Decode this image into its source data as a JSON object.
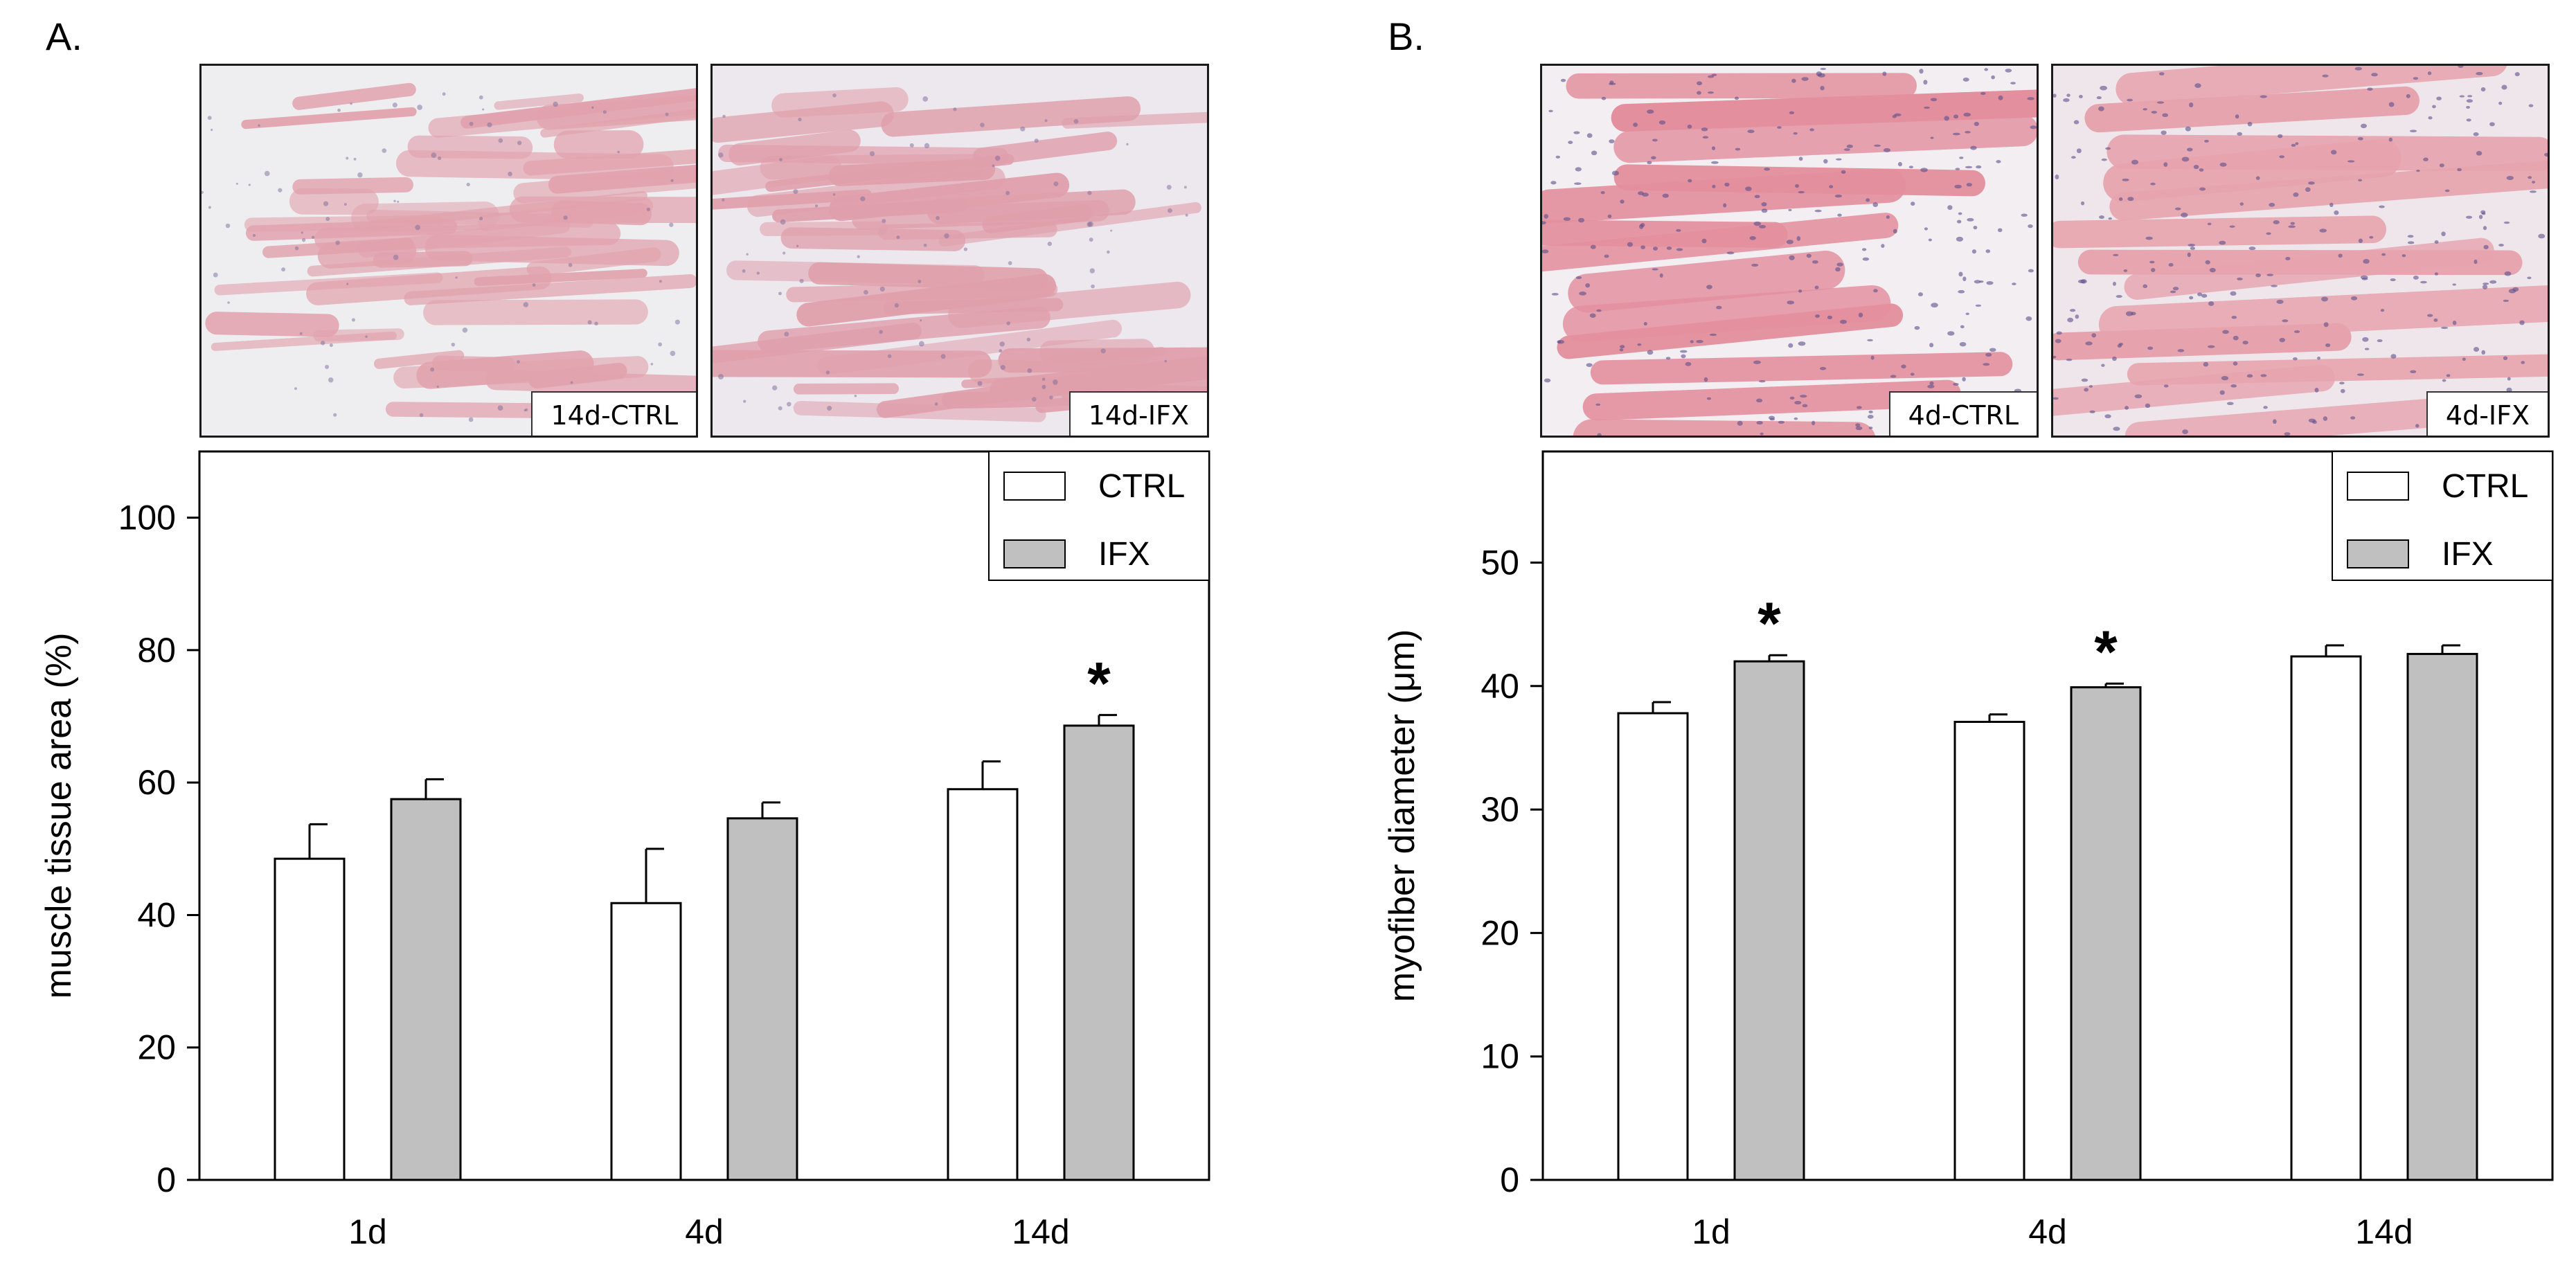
{
  "panels": [
    {
      "letter": "A.",
      "micrographs": [
        {
          "label": "14d-CTRL",
          "tissue_color": "#e1a2ad",
          "background_color": "#eeeef1"
        },
        {
          "label": "14d-IFX",
          "tissue_color": "#df9fab",
          "background_color": "#ede7ee"
        }
      ]
    },
    {
      "letter": "B.",
      "micrographs": [
        {
          "label": "4d-CTRL",
          "tissue_color": "#e38f9e",
          "background_color": "#f3eef2"
        },
        {
          "label": "4d-IFX",
          "tissue_color": "#e6a3ad",
          "background_color": "#efe6ec"
        }
      ]
    }
  ],
  "chart_data": [
    {
      "type": "bar",
      "categories": [
        "1d",
        "4d",
        "14d"
      ],
      "series": [
        {
          "name": "CTRL",
          "color": "#ffffff",
          "values": [
            48.5,
            41.8,
            59.0
          ],
          "errors": [
            5.2,
            8.2,
            4.2
          ]
        },
        {
          "name": "IFX",
          "color": "#c0c0c0",
          "values": [
            57.5,
            54.6,
            68.6
          ],
          "errors": [
            3.0,
            2.4,
            1.6
          ]
        }
      ],
      "significance": [
        null,
        null,
        "*"
      ],
      "ylabel": "muscle tissue area (%)",
      "xlabel": "",
      "ylim": [
        0,
        110
      ],
      "yticks": [
        0,
        20,
        40,
        60,
        80,
        100
      ],
      "legend_position": "top-right",
      "grid": false
    },
    {
      "type": "bar",
      "categories": [
        "1d",
        "4d",
        "14d"
      ],
      "series": [
        {
          "name": "CTRL",
          "color": "#ffffff",
          "values": [
            37.8,
            37.1,
            42.4
          ],
          "errors": [
            0.9,
            0.6,
            0.9
          ]
        },
        {
          "name": "IFX",
          "color": "#c0c0c0",
          "values": [
            42.0,
            39.9,
            42.6
          ],
          "errors": [
            0.5,
            0.3,
            0.7
          ]
        }
      ],
      "significance": [
        "*",
        "*",
        null
      ],
      "ylabel": "myofiber diameter (μm)",
      "xlabel": "",
      "ylim": [
        0,
        59
      ],
      "yticks": [
        0,
        10,
        20,
        30,
        40,
        50
      ],
      "legend_position": "top-right",
      "grid": false
    }
  ]
}
